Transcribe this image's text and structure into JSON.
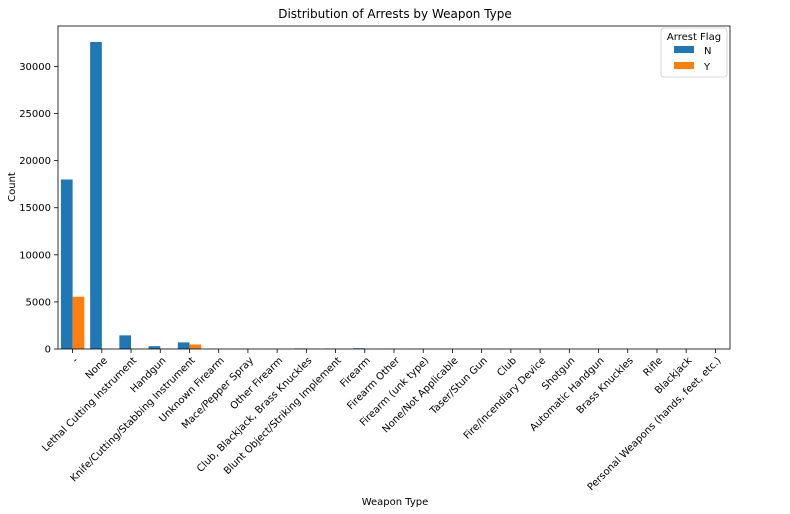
{
  "chart_data": {
    "type": "bar",
    "title": "Distribution of Arrests by Weapon Type",
    "xlabel": "Weapon Type",
    "ylabel": "Count",
    "ylim": [
      0,
      34300
    ],
    "yticks": [
      0,
      5000,
      10000,
      15000,
      20000,
      25000,
      30000
    ],
    "ytick_labels": [
      "0",
      "5000",
      "10000",
      "15000",
      "20000",
      "25000",
      "30000"
    ],
    "grid": false,
    "legend": {
      "title": "Arrest Flag",
      "placement": "top-right"
    },
    "categories": [
      "-",
      "None",
      "Lethal Cutting Instrument",
      "Handgun",
      "Knife/Cutting/Stabbing Instrument",
      "Unknown Firearm",
      "Mace/Pepper Spray",
      "Other Firearm",
      "Club, Blackjack, Brass Knuckles",
      "Blunt Object/Striking Implement",
      "Firearm",
      "Firearm Other",
      "Firearm (unk type)",
      "None/Not Applicable",
      "Taser/Stun Gun",
      "Club",
      "Fire/Incendiary Device",
      "Shotgun",
      "Automatic Handgun",
      "Brass Knuckles",
      "Rifle",
      "Blackjack",
      "Personal Weapons (hands, feet, etc.)"
    ],
    "series": [
      {
        "name": "N",
        "color": "#1f77b4",
        "values": [
          18000,
          32600,
          1450,
          300,
          700,
          15,
          15,
          10,
          60,
          40,
          80,
          20,
          15,
          10,
          10,
          8,
          8,
          8,
          5,
          5,
          5,
          5,
          5
        ]
      },
      {
        "name": "Y",
        "color": "#ff7f0e",
        "values": [
          5550,
          0,
          20,
          50,
          480,
          5,
          5,
          3,
          25,
          15,
          0,
          5,
          3,
          2,
          2,
          2,
          2,
          2,
          1,
          1,
          1,
          1,
          1
        ]
      }
    ]
  }
}
